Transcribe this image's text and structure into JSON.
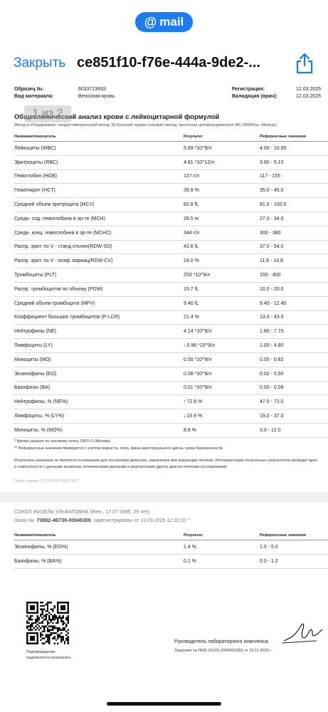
{
  "mail_pill": {
    "label": "mail",
    "at": "@"
  },
  "nav": {
    "close_label": "Закрыть",
    "title": "ce851f10-f76e-444a-9de2-...",
    "share_icon": "share-icon"
  },
  "header": {
    "sample_label": "Образец №:",
    "sample_value": "6033723933",
    "material_label": "Вид материала:",
    "material_value": "Венозная кровь",
    "registration_label": "Регистрация:",
    "registration_value": "12.03.2025",
    "validation_label": "Валидация (врач):",
    "validation_value": "12.03.2025"
  },
  "page_indicator": "1 из 2",
  "test": {
    "title": "Общеклинический анализ крови с лейкоцитарной формулой",
    "method": "Метод и оборудование: кондуктометрический метод, SLS(натрий лаурил сульфат)-метод, проточная цитофлуориметрия (BC-6800Plus, Mindray)"
  },
  "table_headers": {
    "name": "Название/показатель",
    "result": "Результат",
    "ref": "Референсные значения"
  },
  "rows": [
    {
      "name": "Лейкоциты (WBC)",
      "flag": "",
      "result": "5.69 *10^9/л",
      "ref": "4.00 - 10.00"
    },
    {
      "name": "Эритроциты (RBC)",
      "flag": "",
      "result": "4.81 *10^12/л",
      "ref": "3.80 - 5.10"
    },
    {
      "name": "Гемоглобин (HGB)",
      "flag": "",
      "result": "137 г/л",
      "ref": "117 - 155"
    },
    {
      "name": "Гематокрит (HCT)",
      "flag": "",
      "result": "39.8 %",
      "ref": "35.0 - 45.0"
    },
    {
      "name": "Средний объем эритроцита (MCV)",
      "flag": "",
      "result": "82.8 fL",
      "ref": "81.0 - 100.0"
    },
    {
      "name": "Средн. сод. гемоглобина в эр-те (MCH)",
      "flag": "",
      "result": "28.5 пг",
      "ref": "27.0 - 34.0"
    },
    {
      "name": "Средн. конц. гемоглобина в эр-те (MCHC)",
      "flag": "",
      "result": "344 г/л",
      "ref": "300 - 380"
    },
    {
      "name": "Распр. эрит. по V - станд отклон(RDW-SD)",
      "flag": "",
      "result": "43.6 fL",
      "ref": "37.0 - 54.0"
    },
    {
      "name": "Распр. эрит. по V - коэф. вариац(RDW-CV)",
      "flag": "",
      "result": "14.0 %",
      "ref": "11.6 - 14.8"
    },
    {
      "name": "Тромбоциты (PLT)",
      "flag": "",
      "result": "253 *10^9/л",
      "ref": "150 - 400"
    },
    {
      "name": "Распр. тромбоцитов по объему (PDW)",
      "flag": "",
      "result": "15.7 fL",
      "ref": "10.0 - 20.0"
    },
    {
      "name": "Средний объем тромбоцита (MPV)",
      "flag": "",
      "result": "9.40 fL",
      "ref": "9.40 - 12.40"
    },
    {
      "name": "Коэффициент больших тромбоцитов (P-LCR)",
      "flag": "",
      "result": "21.4 %",
      "ref": "13.0 - 43.0"
    },
    {
      "name": "Нейтрофилы (NE)",
      "flag": "",
      "result": "4.14 *10^9/л",
      "ref": "1.80 - 7.70"
    },
    {
      "name": "Лимфоциты (LY)",
      "flag": "↓",
      "result": "0.96 *10^9/л",
      "ref": "1.00 - 4.80"
    },
    {
      "name": "Моноциты (MO)",
      "flag": "",
      "result": "0.50 *10^9/л",
      "ref": "0.05 - 0.82"
    },
    {
      "name": "Эозинофилы (EO)",
      "flag": "",
      "result": "0.08 *10^9/л",
      "ref": "0.02 - 0.50"
    },
    {
      "name": "Базофилы (BA)",
      "flag": "",
      "result": "0.01 *10^9/л",
      "ref": "0.00 - 0.08"
    },
    {
      "name": "Нейтрофилы, % (NE%)",
      "flag": "↑",
      "result": "72.8 %",
      "ref": "47.0 - 72.0"
    },
    {
      "name": "Лимфоциты, % (LY%)",
      "flag": "↓",
      "result": "16.9 %",
      "ref": "19.0 - 37.0"
    },
    {
      "name": "Моноциты, % (MO%)",
      "flag": "",
      "result": "8.8 %",
      "ref": "3.0 - 12.0"
    }
  ],
  "notes": {
    "time_note": "* Время указано по часовому поясу GMT+3 (Москва)",
    "ref_note": "** Референсные значения приводятся с учетом возраста, пола, фазы менструального цикла, срока беременности.",
    "disclaimer_1": "Результаты анализов не являются основанием для постановки диагноза, назначения или коррекции лечения. Интерпретацию полученных результатов проводит врач",
    "disclaimer_2": "в совокупности с данными анамнеза, клиническими данными и результатами других диагностических исследований.",
    "created": "Отчет создан: 12.03.2025 18:17:43 *"
  },
  "page2": {
    "patient": "СОКОЛ ЖИЗЕЛЬ УЛЬФАТОВНА (Жен., 17.07.1995, 29 лет)",
    "order_prefix": "Заказ №: ",
    "order_number": "73882-4B736-00046309",
    "order_suffix": ", зарегистрирован от 12.03.2025 12:32:20 *",
    "rows": [
      {
        "name": "Эозинофилы, % (EO%)",
        "flag": "",
        "result": "1.4 %",
        "ref": "1.0 - 5.0"
      },
      {
        "name": "Базофилы, % (BA%)",
        "flag": "",
        "result": "0.1 %",
        "ref": "0.0 - 1.2"
      }
    ]
  },
  "footer": {
    "qr_caption_1": "Подтверждение",
    "qr_caption_2": "подлинности результата",
    "signer": "Руководитель лабораторного комплекса",
    "license": "Лицензия № Л041-01126-23/00553381 от 10.11.2020 г."
  },
  "colors": {
    "accent": "#1a7df2"
  }
}
